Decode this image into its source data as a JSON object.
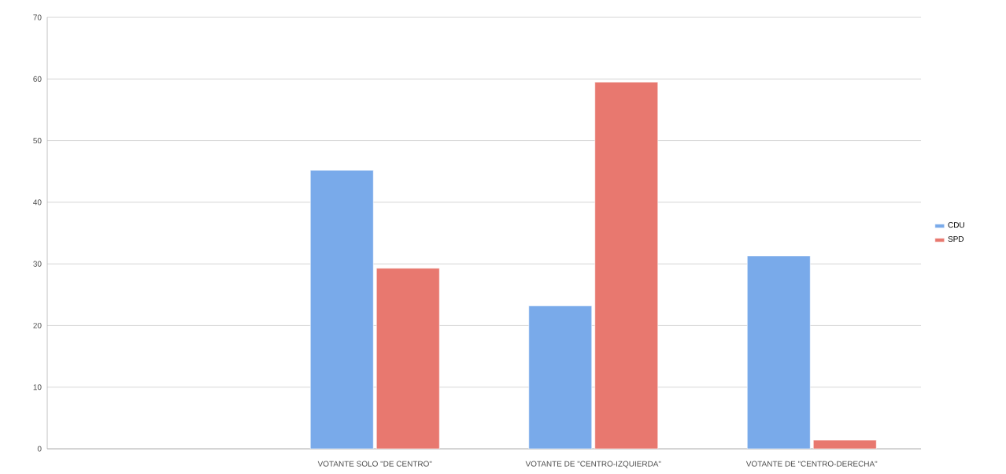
{
  "chart_data": {
    "type": "bar",
    "categories": [
      null,
      "VOTANTE SOLO \"DE CENTRO\"",
      "VOTANTE DE \"CENTRO-IZQUIERDA\"",
      "VOTANTE DE \"CENTRO-DERECHA\""
    ],
    "series": [
      {
        "name": "CDU",
        "color": "#79aaea",
        "values": [
          null,
          45.2,
          23.2,
          31.3
        ]
      },
      {
        "name": "SPD",
        "color": "#e8786f",
        "values": [
          null,
          29.3,
          59.5,
          1.4
        ]
      }
    ],
    "ylim": [
      0,
      70
    ],
    "yticks": [
      0,
      10,
      20,
      30,
      40,
      50,
      60,
      70
    ],
    "grid": "y",
    "legend": "right"
  }
}
